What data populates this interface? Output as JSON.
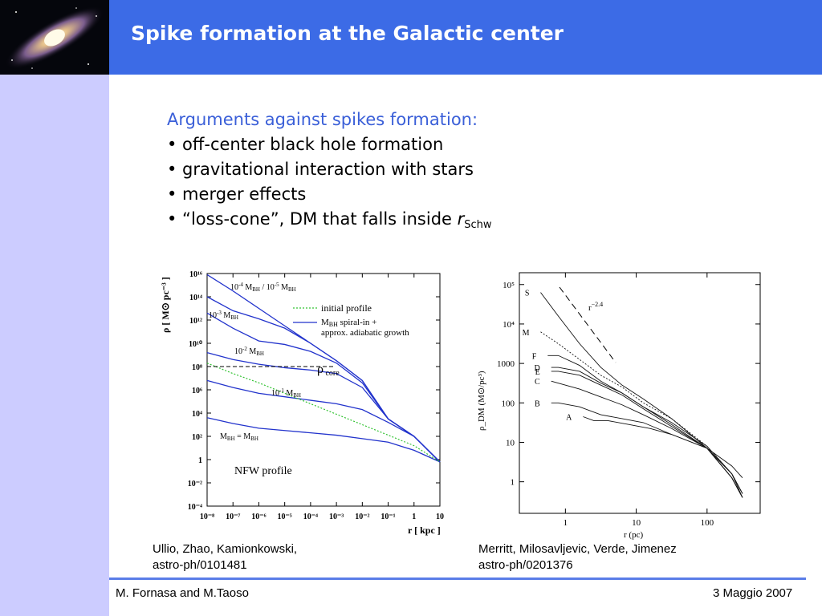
{
  "slide": {
    "title": "Spike formation at the Galactic center",
    "logo_icon": "galaxy-logo"
  },
  "content": {
    "heading": "Arguments against spikes formation:",
    "bullets": [
      "• off-center black hole formation",
      "• gravitational interaction with stars",
      "• merger effects"
    ],
    "last_bullet_prefix": "• “loss-cone”, DM that falls inside ",
    "last_bullet_var": "r",
    "last_bullet_sub": "Schw"
  },
  "captions": {
    "left_line1": "Ullio, Zhao, Kamionkowski,",
    "left_line2": "astro-ph/0101481",
    "right_line1": "Merritt, Milosavljevic, Verde, Jimenez",
    "right_line2": "astro-ph/0201376"
  },
  "footer": {
    "authors": "M. Fornasa and M.Taoso",
    "date": "3 Maggio 2007"
  },
  "chart_data": [
    {
      "type": "line",
      "xscale": "log",
      "yscale": "log",
      "x_ticks": [
        "10⁻⁸",
        "10⁻⁷",
        "10⁻⁶",
        "10⁻⁵",
        "10⁻⁴",
        "10⁻³",
        "10⁻²",
        "10⁻¹",
        "1",
        "10"
      ],
      "y_ticks": [
        "10⁻⁴",
        "10⁻²",
        "1",
        "10²",
        "10⁴",
        "10⁶",
        "10⁸",
        "10¹⁰",
        "10¹²",
        "10¹⁴",
        "10¹⁶"
      ],
      "xlabel": "r [ kpc ]",
      "ylabel": "ρ [ M⊙ pc⁻³ ]",
      "xlim": [
        -8,
        1
      ],
      "ylim": [
        -4,
        16
      ],
      "legend": [
        "initial profile",
        "M^S_BH spiral-in + approx. adiabatic growth"
      ],
      "annotations": [
        "10⁻⁴ M_BH / 10⁻⁵ M_BH",
        "10⁻³ M_BH",
        "10⁻² M_BH",
        "ρ core",
        "10⁻¹ M_BH",
        "M^S_BH = M_BH",
        "NFW profile"
      ],
      "series": [
        {
          "x": [
            -8,
            -7,
            -6,
            -5,
            -4,
            -3,
            -2,
            -1,
            0,
            1
          ],
          "y": [
            15.9,
            14.5,
            13.0,
            11.5,
            10.0,
            8.5,
            6.8,
            3.5,
            2.0,
            -0.2
          ]
        },
        {
          "x": [
            -8,
            -7,
            -6,
            -5,
            -4,
            -3,
            -2,
            -1,
            0,
            1
          ],
          "y": [
            14.0,
            12.8,
            12.1,
            11.3,
            10.0,
            8.5,
            6.8,
            3.5,
            2.0,
            -0.2
          ]
        },
        {
          "x": [
            -8,
            -7,
            -6,
            -5,
            -4,
            -3,
            -2,
            -1,
            0,
            1
          ],
          "y": [
            12.6,
            11.3,
            10.2,
            9.9,
            9.3,
            8.3,
            6.6,
            3.5,
            2.0,
            -0.2
          ]
        },
        {
          "x": [
            -8,
            -7,
            -6,
            -5,
            -4,
            -3,
            -2,
            -1,
            0,
            1
          ],
          "y": [
            9.2,
            8.6,
            8.2,
            7.9,
            7.7,
            7.4,
            6.2,
            3.5,
            2.0,
            -0.2
          ]
        },
        {
          "x": [
            -8,
            -7,
            -6,
            -5,
            -4,
            -3,
            -2,
            -1,
            0,
            1
          ],
          "y": [
            6.8,
            6.2,
            5.7,
            5.4,
            5.1,
            4.8,
            4.3,
            3.2,
            2.0,
            -0.2
          ]
        },
        {
          "x": [
            -8,
            -7,
            -6,
            -5,
            -4,
            -3,
            -2,
            -1,
            0,
            1
          ],
          "y": [
            3.6,
            3.1,
            2.7,
            2.5,
            2.3,
            2.1,
            1.8,
            1.5,
            0.8,
            -0.2
          ]
        }
      ],
      "initial_profile": {
        "x": [
          -8,
          -7,
          -6,
          -5,
          -4,
          -3,
          -2,
          -1,
          0,
          1
        ],
        "y": [
          8.3,
          7.4,
          6.6,
          5.7,
          4.8,
          3.9,
          3.0,
          2.1,
          1.2,
          -0.2
        ]
      },
      "rho_core": 8
    },
    {
      "type": "line",
      "xscale": "log",
      "yscale": "log",
      "x_ticks": [
        "1",
        "10",
        "100"
      ],
      "y_ticks": [
        "1",
        "10",
        "100",
        "1000",
        "10⁴",
        "10⁵"
      ],
      "xlabel": "r (pc)",
      "ylabel": "ρ_DM (M⊙/pc³)",
      "xlim": [
        -0.65,
        0.78
      ],
      "ylim": [
        -0.8,
        5.3
      ],
      "annotations": [
        "r⁻²·⁴"
      ],
      "series": [
        {
          "name": "S",
          "x": [
            -0.35,
            -0.1,
            0.2,
            0.5,
            0.8,
            1.1,
            1.5,
            2.0,
            2.35,
            2.5
          ],
          "y": [
            4.8,
            4.2,
            3.5,
            2.9,
            2.45,
            2.1,
            1.6,
            0.85,
            0.1,
            -0.4
          ]
        },
        {
          "name": "M",
          "x": [
            -0.35,
            -0.1,
            0.2,
            0.5,
            0.8,
            1.1,
            1.5,
            2.0,
            2.35,
            2.5
          ],
          "y": [
            3.8,
            3.5,
            3.1,
            2.7,
            2.4,
            2.0,
            1.6,
            0.9,
            0.2,
            -0.3
          ]
        },
        {
          "name": "F",
          "x": [
            -0.25,
            -0.1,
            0.2,
            0.5,
            0.8,
            1.1,
            1.5,
            2.0,
            2.35,
            2.5
          ],
          "y": [
            3.2,
            3.2,
            2.95,
            2.55,
            2.25,
            1.9,
            1.5,
            0.9,
            0.2,
            -0.3
          ]
        },
        {
          "name": "D",
          "x": [
            -0.2,
            -0.1,
            0.2,
            0.5,
            0.8,
            1.1,
            1.5,
            2.0,
            2.35,
            2.5
          ],
          "y": [
            2.9,
            2.9,
            2.8,
            2.5,
            2.25,
            1.9,
            1.45,
            0.85,
            0.1,
            -0.4
          ]
        },
        {
          "name": "E",
          "x": [
            -0.2,
            -0.1,
            0.2,
            0.5,
            0.8,
            1.1,
            1.5,
            2.0,
            2.35,
            2.5
          ],
          "y": [
            2.8,
            2.8,
            2.7,
            2.45,
            2.2,
            1.85,
            1.4,
            0.85,
            0.1,
            -0.4
          ]
        },
        {
          "name": "C",
          "x": [
            -0.2,
            -0.1,
            0.2,
            0.5,
            0.8,
            1.1,
            1.5,
            2.0,
            2.35,
            2.5
          ],
          "y": [
            2.55,
            2.5,
            2.35,
            2.15,
            1.95,
            1.7,
            1.35,
            0.85,
            0.2,
            -0.4
          ]
        },
        {
          "name": "B",
          "x": [
            -0.2,
            -0.1,
            0.2,
            0.5,
            0.8,
            1.1,
            1.5,
            2.0,
            2.35,
            2.5
          ],
          "y": [
            2.0,
            2.0,
            1.9,
            1.7,
            1.6,
            1.5,
            1.2,
            0.85,
            0.2,
            -0.3
          ]
        },
        {
          "name": "A",
          "x": [
            0.25,
            0.4,
            0.6,
            0.9,
            1.2,
            1.5,
            2.0,
            2.35,
            2.5
          ],
          "y": [
            1.65,
            1.55,
            1.55,
            1.45,
            1.35,
            1.2,
            0.85,
            0.4,
            0.1
          ]
        }
      ]
    }
  ]
}
